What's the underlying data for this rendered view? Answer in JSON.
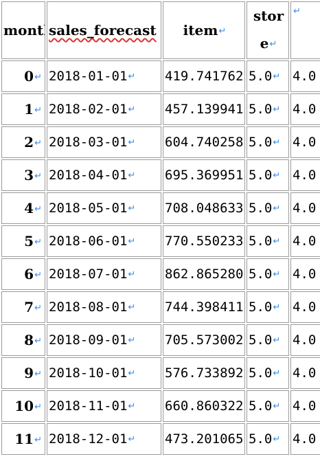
{
  "header": {
    "month": "month",
    "sales_forecast": "sales_forecast",
    "item": "item",
    "store_line1": "stor",
    "store_line2": "e"
  },
  "rows": [
    {
      "month": "0",
      "sales_forecast": "2018-01-01",
      "item": "419.741762",
      "store": "5.0",
      "extra": "4.0"
    },
    {
      "month": "1",
      "sales_forecast": "2018-02-01",
      "item": "457.139941",
      "store": "5.0",
      "extra": "4.0"
    },
    {
      "month": "2",
      "sales_forecast": "2018-03-01",
      "item": "604.740258",
      "store": "5.0",
      "extra": "4.0"
    },
    {
      "month": "3",
      "sales_forecast": "2018-04-01",
      "item": "695.369951",
      "store": "5.0",
      "extra": "4.0"
    },
    {
      "month": "4",
      "sales_forecast": "2018-05-01",
      "item": "708.048633",
      "store": "5.0",
      "extra": "4.0"
    },
    {
      "month": "5",
      "sales_forecast": "2018-06-01",
      "item": "770.550233",
      "store": "5.0",
      "extra": "4.0"
    },
    {
      "month": "6",
      "sales_forecast": "2018-07-01",
      "item": "862.865280",
      "store": "5.0",
      "extra": "4.0"
    },
    {
      "month": "7",
      "sales_forecast": "2018-08-01",
      "item": "744.398411",
      "store": "5.0",
      "extra": "4.0"
    },
    {
      "month": "8",
      "sales_forecast": "2018-09-01",
      "item": "705.573002",
      "store": "5.0",
      "extra": "4.0"
    },
    {
      "month": "9",
      "sales_forecast": "2018-10-01",
      "item": "576.733892",
      "store": "5.0",
      "extra": "4.0"
    },
    {
      "month": "10",
      "sales_forecast": "2018-11-01",
      "item": "660.860322",
      "store": "5.0",
      "extra": "4.0"
    },
    {
      "month": "11",
      "sales_forecast": "2018-12-01",
      "item": "473.201065",
      "store": "5.0",
      "extra": "4.0"
    }
  ],
  "cell_mark": "↵",
  "colors": {
    "border": "#9a9a9a",
    "cell_mark": "#3a8ee6",
    "spell_underline": "#dd3333"
  }
}
